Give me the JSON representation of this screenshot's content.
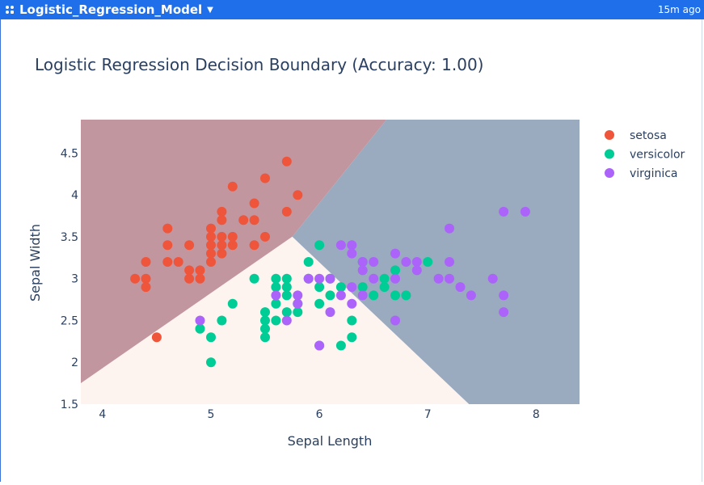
{
  "app": {
    "title": "Logistic_Regression_Model",
    "time_ago": "15m ago"
  },
  "colors": {
    "topbar": "#1f6feb",
    "setosa": "#ef553b",
    "versicolor": "#00cc96",
    "virginica": "#ab63fa",
    "region_setosa": "#c2969f",
    "region_versicolor": "#fdf3ef",
    "region_virginica": "#9aaabf"
  },
  "chart_data": {
    "type": "scatter",
    "title": "Logistic Regression Decision Boundary (Accuracy: 1.00)",
    "xlabel": "Sepal Length",
    "ylabel": "Sepal Width",
    "xlim": [
      3.8,
      8.4
    ],
    "ylim": [
      1.5,
      4.9
    ],
    "xticks": [
      "4",
      "5",
      "6",
      "7",
      "8"
    ],
    "yticks": [
      "1.5",
      "2",
      "2.5",
      "3",
      "3.5",
      "4",
      "4.5"
    ],
    "legend_position": "top-right",
    "decision_regions": [
      {
        "class": "setosa",
        "polygon": [
          [
            3.8,
            4.9
          ],
          [
            6.62,
            4.9
          ],
          [
            5.75,
            3.5
          ],
          [
            3.8,
            1.75
          ]
        ]
      },
      {
        "class": "virginica",
        "polygon": [
          [
            6.62,
            4.9
          ],
          [
            8.4,
            4.9
          ],
          [
            8.4,
            1.5
          ],
          [
            7.38,
            1.5
          ],
          [
            5.75,
            3.5
          ]
        ]
      },
      {
        "class": "versicolor",
        "polygon": [
          [
            3.8,
            1.75
          ],
          [
            5.75,
            3.5
          ],
          [
            7.38,
            1.5
          ],
          [
            3.8,
            1.5
          ]
        ]
      }
    ],
    "series": [
      {
        "name": "setosa",
        "x": [
          4.3,
          4.4,
          4.4,
          4.4,
          4.5,
          4.6,
          4.6,
          4.6,
          4.7,
          4.8,
          4.8,
          4.8,
          4.9,
          4.9,
          5.0,
          5.0,
          5.0,
          5.0,
          5.0,
          5.1,
          5.1,
          5.1,
          5.1,
          5.1,
          5.2,
          5.2,
          5.2,
          5.3,
          5.4,
          5.4,
          5.4,
          5.5,
          5.5,
          5.7,
          5.7,
          5.8
        ],
        "y": [
          3.0,
          3.2,
          3.0,
          2.9,
          2.3,
          3.6,
          3.4,
          3.2,
          3.2,
          3.4,
          3.1,
          3.0,
          3.1,
          3.0,
          3.6,
          3.5,
          3.4,
          3.3,
          3.2,
          3.8,
          3.7,
          3.5,
          3.4,
          3.3,
          4.1,
          3.5,
          3.4,
          3.7,
          3.9,
          3.7,
          3.4,
          4.2,
          3.5,
          4.4,
          3.8,
          4.0
        ]
      },
      {
        "name": "versicolor",
        "x": [
          4.9,
          5.0,
          5.0,
          5.1,
          5.2,
          5.4,
          5.5,
          5.5,
          5.5,
          5.5,
          5.6,
          5.6,
          5.6,
          5.6,
          5.7,
          5.7,
          5.7,
          5.7,
          5.8,
          5.8,
          5.9,
          5.9,
          6.0,
          6.0,
          6.0,
          6.0,
          6.1,
          6.1,
          6.2,
          6.2,
          6.3,
          6.3,
          6.4,
          6.4,
          6.5,
          6.6,
          6.6,
          6.7,
          6.7,
          6.8,
          7.0
        ],
        "y": [
          2.4,
          2.3,
          2.0,
          2.5,
          2.7,
          3.0,
          2.6,
          2.5,
          2.4,
          2.3,
          3.0,
          2.9,
          2.7,
          2.5,
          3.0,
          2.9,
          2.8,
          2.6,
          2.7,
          2.6,
          3.2,
          3.0,
          3.4,
          2.9,
          2.7,
          2.2,
          3.0,
          2.8,
          2.9,
          2.2,
          2.5,
          2.3,
          3.2,
          2.9,
          2.8,
          3.0,
          2.9,
          3.1,
          2.8,
          2.8,
          3.2
        ]
      },
      {
        "name": "virginica",
        "x": [
          4.9,
          5.6,
          5.7,
          5.8,
          5.8,
          5.9,
          6.0,
          6.0,
          6.1,
          6.1,
          6.2,
          6.2,
          6.3,
          6.3,
          6.3,
          6.3,
          6.4,
          6.4,
          6.4,
          6.5,
          6.5,
          6.7,
          6.7,
          6.7,
          6.8,
          6.9,
          6.9,
          7.1,
          7.2,
          7.2,
          7.2,
          7.3,
          7.4,
          7.6,
          7.7,
          7.7,
          7.7,
          7.9
        ],
        "y": [
          2.5,
          2.8,
          2.5,
          2.8,
          2.7,
          3.0,
          3.0,
          2.2,
          3.0,
          2.6,
          3.4,
          2.8,
          3.4,
          3.3,
          2.9,
          2.7,
          3.2,
          3.1,
          2.8,
          3.2,
          3.0,
          3.3,
          3.0,
          2.5,
          3.2,
          3.2,
          3.1,
          3.0,
          3.6,
          3.2,
          3.0,
          2.9,
          2.8,
          3.0,
          3.8,
          2.8,
          2.6,
          3.8
        ]
      }
    ]
  }
}
